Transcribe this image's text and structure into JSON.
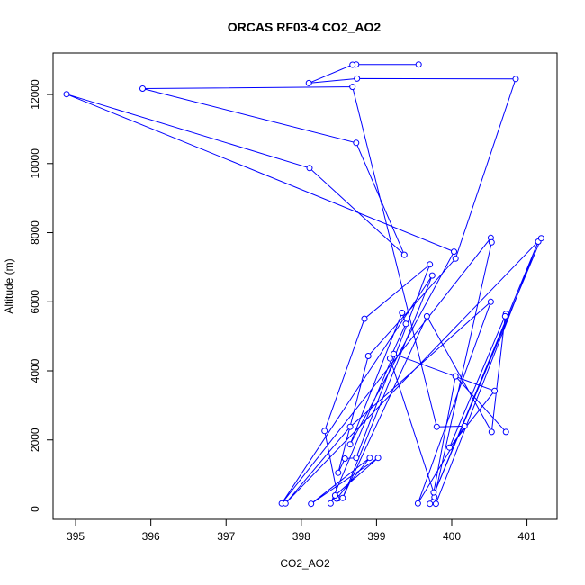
{
  "chart_data": {
    "type": "line",
    "title": "ORCAS RF03-4 CO2_AO2",
    "xlabel": "CO2_AO2",
    "ylabel": "Altitude (m)",
    "xlim": [
      394.7,
      401.4
    ],
    "ylim": [
      -300,
      13200
    ],
    "x_ticks": [
      395,
      396,
      397,
      398,
      399,
      400,
      401
    ],
    "y_ticks": [
      0,
      2000,
      4000,
      6000,
      8000,
      10000,
      12000
    ],
    "grid": false,
    "markers": "open-circle",
    "series": [
      {
        "color": "#0000ff",
        "points": [
          [
            399.56,
            12870
          ],
          [
            398.73,
            12870
          ],
          [
            398.68,
            12860
          ],
          [
            398.1,
            12330
          ],
          [
            398.74,
            12460
          ],
          [
            400.85,
            12450
          ],
          [
            400.05,
            7250
          ],
          [
            398.89,
            4430
          ],
          [
            398.49,
            1050
          ],
          [
            398.58,
            1460
          ],
          [
            398.73,
            1480
          ],
          [
            399.71,
            7080
          ],
          [
            398.84,
            5510
          ],
          [
            398.31,
            2260
          ],
          [
            398.49,
            310
          ],
          [
            398.47,
            300
          ],
          [
            398.91,
            1480
          ],
          [
            398.13,
            150
          ],
          [
            399.02,
            1480
          ],
          [
            398.45,
            390
          ],
          [
            398.39,
            160
          ],
          [
            399.23,
            4490
          ],
          [
            400.57,
            3420
          ],
          [
            399.97,
            1780
          ],
          [
            400.72,
            5650
          ],
          [
            400.71,
            5580
          ],
          [
            400.53,
            2230
          ],
          [
            399.67,
            5580
          ],
          [
            398.55,
            320
          ],
          [
            399.74,
            6760
          ],
          [
            397.74,
            160
          ],
          [
            400.52,
            7850
          ],
          [
            400.53,
            7720
          ],
          [
            399.77,
            340
          ],
          [
            399.79,
            150
          ],
          [
            401.15,
            7740
          ],
          [
            399.71,
            150
          ],
          [
            401.19,
            7840
          ],
          [
            397.79,
            160
          ],
          [
            398.65,
            2380
          ],
          [
            400.52,
            6000
          ],
          [
            399.55,
            160
          ],
          [
            400.17,
            2400
          ],
          [
            399.8,
            2380
          ],
          [
            398.68,
            12220
          ],
          [
            395.89,
            12170
          ],
          [
            398.73,
            10600
          ],
          [
            399.37,
            7360
          ],
          [
            398.11,
            9870
          ],
          [
            394.88,
            12010
          ],
          [
            400.03,
            7450
          ],
          [
            398.65,
            1870
          ],
          [
            399.34,
            5680
          ],
          [
            399.39,
            5360
          ],
          [
            399.18,
            4360
          ],
          [
            399.76,
            480
          ],
          [
            400.05,
            3840
          ],
          [
            400.72,
            2230
          ]
        ]
      }
    ]
  }
}
